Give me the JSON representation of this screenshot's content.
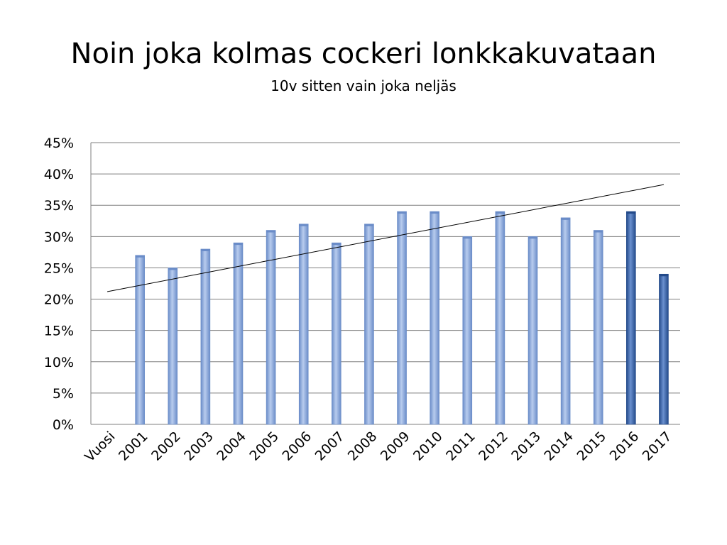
{
  "slide": {
    "title": "Noin joka kolmas cockeri lonkkakuvataan",
    "subtitle": "10v sitten vain joka neljäs"
  },
  "colors": {
    "bar_regular": "#8DA9DA",
    "bar_regular_light": "#B8CCEE",
    "bar_regular_dark": "#6A8CC8",
    "bar_highlight": "#3E68AE",
    "bar_highlight_light": "#6A90CF",
    "bar_highlight_dark": "#234A8A",
    "grid": "#7F7F7F",
    "trend": "#000000"
  },
  "chart_data": {
    "type": "bar",
    "title": "Noin joka kolmas cockeri lonkkakuvataan",
    "subtitle": "10v sitten vain joka neljäs",
    "categories": [
      "Vuosi",
      "2001",
      "2002",
      "2003",
      "2004",
      "2005",
      "2006",
      "2007",
      "2008",
      "2009",
      "2010",
      "2011",
      "2012",
      "2013",
      "2014",
      "2015",
      "2016",
      "2017"
    ],
    "values": [
      null,
      27,
      25,
      28,
      29,
      31,
      32,
      29,
      32,
      34,
      34,
      30,
      34,
      30,
      33,
      31,
      34,
      24
    ],
    "highlighted_categories": [
      "2016",
      "2017"
    ],
    "unit": "%",
    "ylim": [
      0,
      45
    ],
    "yticks": [
      0,
      5,
      10,
      15,
      20,
      25,
      30,
      35,
      40,
      45
    ],
    "ytick_labels": [
      "0%",
      "5%",
      "10%",
      "15%",
      "20%",
      "25%",
      "30%",
      "35%",
      "40%",
      "45%"
    ],
    "grid": true,
    "legend": "none",
    "trendline": {
      "type": "linear",
      "start_value": 21.2,
      "end_value": 38.3
    },
    "xlabel": "",
    "ylabel": ""
  }
}
